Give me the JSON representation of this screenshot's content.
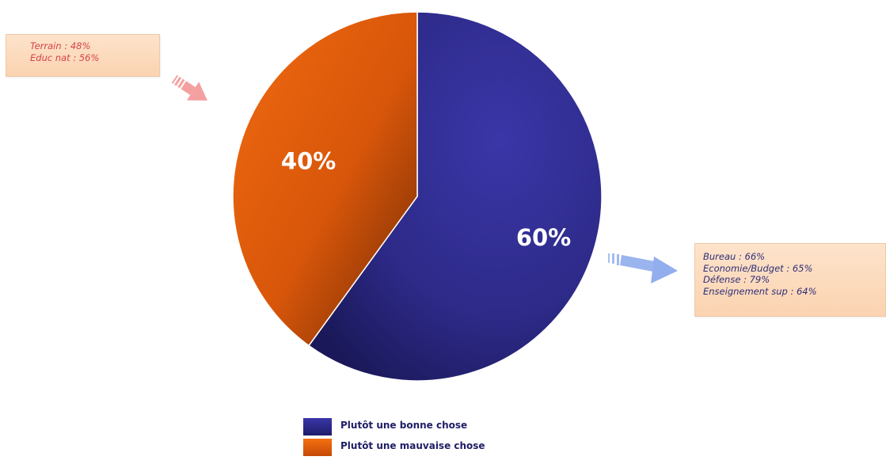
{
  "chart_data": {
    "type": "pie",
    "title": "",
    "slices": [
      {
        "label": "Plutôt une bonne chose",
        "value": 60,
        "display": "60%",
        "color": "#2d2a88"
      },
      {
        "label": "Plutôt une mauvaise chose",
        "value": 40,
        "display": "40%",
        "color": "#e85e0c"
      }
    ],
    "legend_position": "bottom",
    "annotations": {
      "mauvaise": {
        "lines": [
          "Terrain : 48%",
          "Educ nat : 56%"
        ],
        "color": "#d4434a",
        "arrow_color": "#f4a0a0"
      },
      "bonne": {
        "lines": [
          "Bureau : 66%",
          "Economie/Budget : 65%",
          "Défense : 79%",
          "Enseignement sup : 64%"
        ],
        "color": "#2e2e78",
        "arrow_color": "#9ab8f0"
      }
    }
  }
}
